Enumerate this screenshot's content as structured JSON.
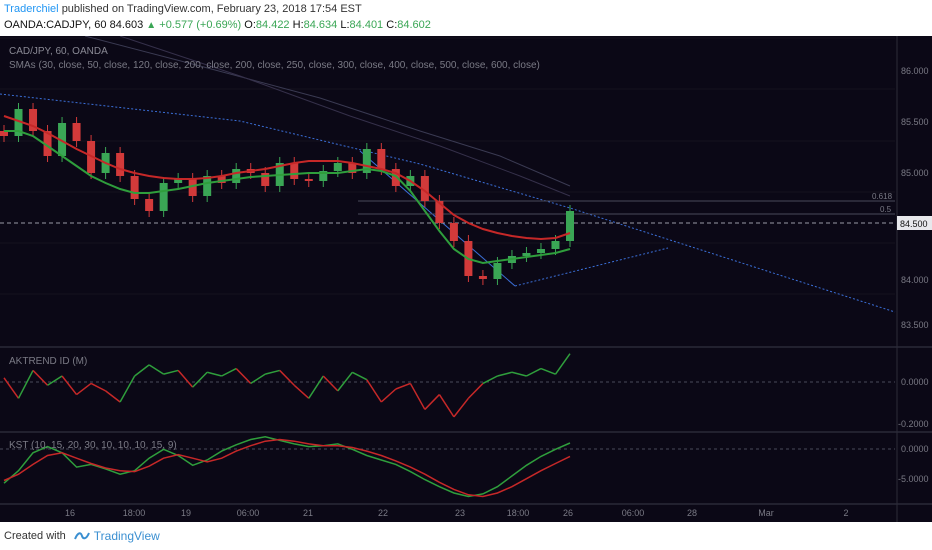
{
  "header": {
    "author": "Traderchiel",
    "published_text": "published on TradingView.com, February 23, 2018 17:54 EST",
    "symbol": "OANDA:CADJPY, 60",
    "last_price": "84.603",
    "change": "+0.577 (+0.69%)",
    "ohlc": {
      "o_label": "O:",
      "o": "84.422",
      "h_label": "H:",
      "h": "84.634",
      "l_label": "L:",
      "l": "84.401",
      "c_label": "C:",
      "c": "84.602"
    }
  },
  "legend": {
    "series_title": "CAD/JPY, 60, OANDA",
    "sma_title": "SMAs (30, close, 50, close, 120, close, 200, close, 200, close, 250, close, 300, close, 400, close, 500, close, 600, close)",
    "akt_title": "AKTREND ID (M)",
    "kst_title": "KST (10, 15, 20, 30, 10, 10, 10, 15, 9)"
  },
  "colors": {
    "background": "#0b0816",
    "up": "#3aa655",
    "down": "#d23a3a",
    "trendline": "#3b6fd8",
    "sma_fast": "#2f9e3c",
    "sma_slow": "#c62828",
    "text": "#7a7a85"
  },
  "axes": {
    "price_ticks": [
      "86.000",
      "85.500",
      "85.000",
      "84.500",
      "84.000",
      "83.500"
    ],
    "current_price_label": "84.500",
    "fib_labels": [
      "0.618",
      "0.5"
    ],
    "akt_ticks": [
      "0.0000",
      "-0.2000"
    ],
    "kst_ticks": [
      "0.0000",
      "-5.0000"
    ],
    "time_labels": [
      "16",
      "18:00",
      "19",
      "06:00",
      "21",
      "22",
      "18:00",
      "23",
      "18:00",
      "26",
      "06:00",
      "28",
      "Mar",
      "2"
    ]
  },
  "footer": {
    "created_with": "Created with",
    "brand": "TradingView",
    "icon": "tradingview-logo-icon"
  },
  "chart_data": {
    "type": "line",
    "title": "CAD/JPY, 60, OANDA",
    "panes": [
      {
        "name": "price",
        "ylim": [
          83.3,
          86.3
        ]
      },
      {
        "name": "AKTREND ID (M)",
        "ylim": [
          -0.26,
          0.16
        ]
      },
      {
        "name": "KST (10, 15, 20, 30, 10, 10, 10, 15, 9)",
        "ylim": [
          -6.6,
          0.8
        ]
      }
    ],
    "price_series": {
      "x_index": [
        0,
        7,
        14,
        21,
        28,
        35,
        42,
        49,
        56,
        63,
        70,
        77,
        84,
        91,
        98,
        105,
        112,
        119,
        126,
        133,
        140,
        147,
        154,
        161,
        168,
        175,
        182,
        189,
        196,
        203,
        210,
        217,
        224,
        231,
        238,
        245,
        252,
        259,
        266,
        273
      ],
      "close": [
        85.35,
        85.62,
        85.4,
        85.15,
        85.48,
        85.3,
        84.98,
        85.18,
        84.95,
        84.72,
        84.6,
        84.88,
        84.92,
        84.75,
        84.95,
        84.88,
        85.02,
        84.98,
        84.85,
        85.08,
        84.92,
        84.9,
        85.0,
        85.08,
        84.98,
        85.22,
        85.02,
        84.85,
        84.95,
        84.7,
        84.48,
        84.3,
        83.95,
        83.92,
        84.08,
        84.15,
        84.18,
        84.22,
        84.3,
        84.6
      ]
    },
    "sma_fast": [
      85.4,
      85.4,
      85.35,
      85.25,
      85.15,
      85.05,
      84.95,
      84.88,
      84.82,
      84.78,
      84.78,
      84.8,
      84.82,
      84.85,
      84.88,
      84.9,
      84.92,
      84.94,
      84.95,
      84.96,
      84.97,
      84.98,
      84.98,
      84.98,
      85.0,
      85.02,
      85.0,
      84.95,
      84.8,
      84.6,
      84.4,
      84.22,
      84.12,
      84.08,
      84.1,
      84.12,
      84.14,
      84.16,
      84.18,
      84.22
    ],
    "sma_slow": [
      85.55,
      85.5,
      85.45,
      85.38,
      85.3,
      85.22,
      85.15,
      85.08,
      85.02,
      84.98,
      84.95,
      84.93,
      84.92,
      84.92,
      84.93,
      84.95,
      84.98,
      85.0,
      85.02,
      85.05,
      85.08,
      85.1,
      85.1,
      85.1,
      85.08,
      85.05,
      85.02,
      84.98,
      84.9,
      84.8,
      84.68,
      84.56,
      84.48,
      84.42,
      84.38,
      84.35,
      84.33,
      84.32,
      84.33,
      84.38
    ],
    "aktrend": [
      0.01,
      -0.1,
      0.05,
      -0.03,
      0.02,
      -0.08,
      -0.02,
      -0.06,
      -0.12,
      0.02,
      0.08,
      0.03,
      0.05,
      -0.04,
      0.04,
      0.02,
      0.06,
      -0.02,
      0.03,
      0.05,
      -0.03,
      -0.1,
      0.02,
      -0.06,
      0.04,
      0.0,
      -0.12,
      -0.05,
      -0.02,
      -0.16,
      -0.08,
      -0.2,
      -0.1,
      -0.02,
      0.02,
      0.04,
      0.02,
      0.06,
      0.03,
      0.14
    ],
    "kst": [
      -4.6,
      -3.2,
      -1.2,
      -0.5,
      -1.2,
      -2.8,
      -2.5,
      -3.0,
      -3.6,
      -3.2,
      -1.8,
      -0.8,
      -1.5,
      -2.6,
      -2.0,
      -1.0,
      -0.3,
      0.3,
      0.6,
      0.2,
      -0.2,
      -0.5,
      -0.4,
      -0.2,
      -0.8,
      -1.5,
      -2.0,
      -2.5,
      -3.3,
      -4.2,
      -5.0,
      -5.7,
      -6.1,
      -5.8,
      -5.0,
      -3.8,
      -2.6,
      -1.6,
      -0.8,
      -0.1
    ],
    "kst_signal": [
      -4.3,
      -3.6,
      -2.5,
      -1.5,
      -1.2,
      -1.8,
      -2.4,
      -2.9,
      -3.2,
      -3.3,
      -2.7,
      -1.8,
      -1.4,
      -1.8,
      -2.2,
      -1.8,
      -1.0,
      -0.4,
      0.1,
      0.3,
      0.1,
      -0.2,
      -0.4,
      -0.4,
      -0.6,
      -1.0,
      -1.5,
      -2.1,
      -2.8,
      -3.6,
      -4.5,
      -5.3,
      -5.9,
      -6.1,
      -5.7,
      -5.0,
      -4.1,
      -3.2,
      -2.4,
      -1.6
    ]
  }
}
